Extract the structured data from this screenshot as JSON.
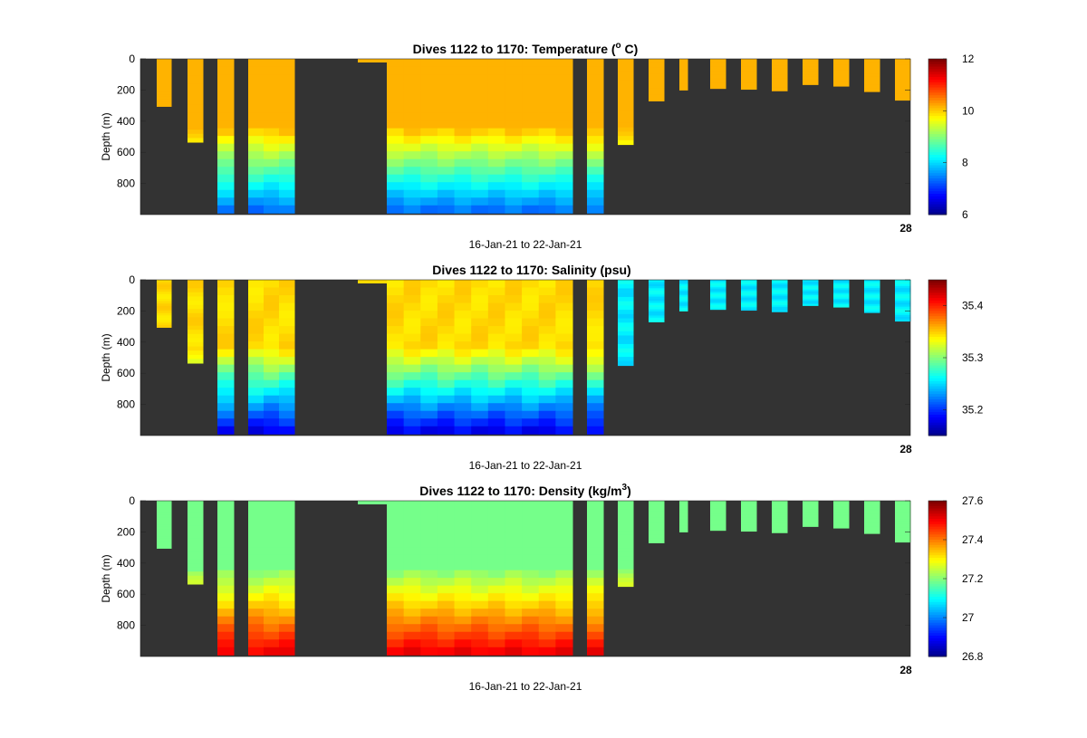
{
  "colors": {
    "background": "#333333",
    "colormap": "jet",
    "axis": "#262626"
  },
  "chart_data": [
    {
      "type": "heatmap",
      "variable": "temperature",
      "title_main": "Dives 1122 to 1170: Temperature (",
      "title_sup": "o",
      "title_end": " C)",
      "ylabel": "Depth (m)",
      "xlabel": "16-Jan-21 to 22-Jan-21",
      "x_tick_label": "28",
      "y_ticks": [
        0,
        200,
        400,
        600,
        800
      ],
      "ylim": [
        0,
        1000
      ],
      "y_reversed": true,
      "colorbar": {
        "min": 6,
        "max": 12,
        "ticks": [
          12,
          10,
          8,
          6
        ]
      }
    },
    {
      "type": "heatmap",
      "variable": "salinity",
      "title_main": "Dives 1122 to 1170: Salinity (psu)",
      "title_sup": "",
      "title_end": "",
      "ylabel": "Depth (m)",
      "xlabel": "16-Jan-21 to 22-Jan-21",
      "x_tick_label": "28",
      "y_ticks": [
        0,
        200,
        400,
        600,
        800
      ],
      "ylim": [
        0,
        1000
      ],
      "y_reversed": true,
      "colorbar": {
        "min": 35.15,
        "max": 35.45,
        "ticks": [
          35.4,
          35.3,
          35.2
        ]
      }
    },
    {
      "type": "heatmap",
      "variable": "density",
      "title_main": "Dives 1122 to 1170: Density (kg/m",
      "title_sup": "3",
      "title_end": ")",
      "ylabel": "Depth (m)",
      "xlabel": "16-Jan-21 to 22-Jan-21",
      "x_tick_label": "28",
      "y_ticks": [
        0,
        200,
        400,
        600,
        800
      ],
      "ylim": [
        0,
        1000
      ],
      "y_reversed": true,
      "colorbar": {
        "min": 26.8,
        "max": 27.6,
        "ticks": [
          27.6,
          27.4,
          27.2,
          27,
          26.8
        ]
      }
    }
  ]
}
